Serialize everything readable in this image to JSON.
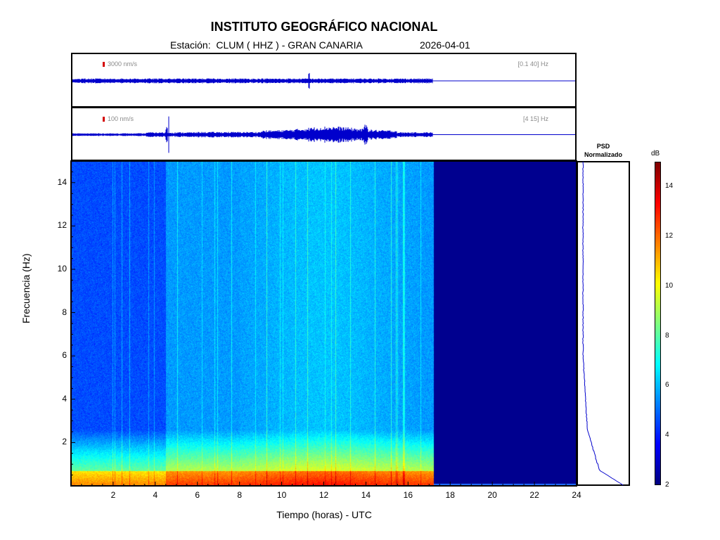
{
  "header": {
    "title": "INSTITUTO GEOGRÁFICO NACIONAL",
    "subtitle": "Estación:  CLUM ( HHZ ) - GRAN CANARIA",
    "date": "2026-04-01"
  },
  "traces": [
    {
      "scale_label": "3000 nm/s",
      "band_label": "[0.1 40] Hz"
    },
    {
      "scale_label": "100 nm/s",
      "band_label": "[4 15] Hz"
    }
  ],
  "psd": {
    "title_line1": "PSD",
    "title_line2": "Normalizado"
  },
  "colorbar": {
    "unit": "dB",
    "range": [
      2,
      15
    ],
    "ticks": [
      "2",
      "4",
      "6",
      "8",
      "10",
      "12",
      "14"
    ]
  },
  "chart_data": {
    "type": "heatmap",
    "title": "INSTITUTO GEOGRÁFICO NACIONAL",
    "xlabel": "Tiempo (horas) - UTC",
    "ylabel": "Frecuencia  (Hz)",
    "xlim": [
      0,
      24
    ],
    "ylim": [
      0,
      15
    ],
    "x_ticks": [
      "2",
      "4",
      "6",
      "8",
      "10",
      "12",
      "14",
      "16",
      "18",
      "20",
      "22",
      "24"
    ],
    "y_ticks": [
      "2",
      "4",
      "6",
      "8",
      "10",
      "12",
      "14"
    ],
    "data_end_hour": 17.2,
    "colormap": "jet",
    "colors": {
      "trace": "#0000cc",
      "no_data": "#00008f"
    }
  }
}
